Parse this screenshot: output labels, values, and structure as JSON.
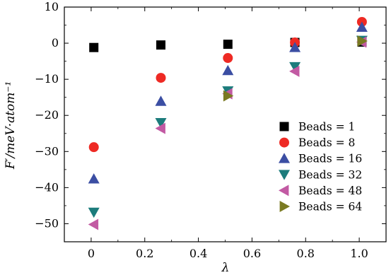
{
  "chart_data": {
    "type": "scatter",
    "title": "",
    "xlabel": "λ",
    "ylabel": "F′/meV·atom⁻¹",
    "xlim": [
      -0.1,
      1.1
    ],
    "ylim": [
      -55,
      10
    ],
    "x_ticks": [
      0,
      0.2,
      0.4,
      0.6,
      0.8,
      1.0
    ],
    "x_tick_labels": [
      "0",
      "0.2",
      "0.4",
      "0.6",
      "0.8",
      "1.0"
    ],
    "y_ticks": [
      10,
      0,
      -10,
      -20,
      -30,
      -40,
      -50
    ],
    "y_tick_labels": [
      "10",
      "0",
      "−10",
      "−20",
      "−30",
      "−40",
      "−50"
    ],
    "grid": false,
    "legend_position": "lower-right",
    "series": [
      {
        "name": "Beads = 1",
        "marker": "square",
        "color": "#000000",
        "x": [
          0.01,
          0.26,
          0.51,
          0.76,
          1.01
        ],
        "y": [
          -1.2,
          -0.5,
          -0.3,
          0.2,
          0.3
        ]
      },
      {
        "name": "Beads = 8",
        "marker": "circle",
        "color": "#ee2a24",
        "x": [
          0.01,
          0.26,
          0.51,
          0.76,
          1.01
        ],
        "y": [
          -28.8,
          -9.6,
          -4.1,
          0.2,
          5.9
        ]
      },
      {
        "name": "Beads = 16",
        "marker": "triangle-up",
        "color": "#3b4ea3",
        "x": [
          0.01,
          0.26,
          0.51,
          0.76,
          1.01
        ],
        "y": [
          -37.6,
          -16.1,
          -7.6,
          -1.2,
          4.4
        ]
      },
      {
        "name": "Beads = 32",
        "marker": "triangle-down",
        "color": "#1c7c7c",
        "x": [
          0.01,
          0.26,
          0.51,
          0.76,
          1.01
        ],
        "y": [
          -46.8,
          -22.0,
          -13.2,
          -6.5,
          0.8
        ]
      },
      {
        "name": "Beads = 48",
        "marker": "triangle-left",
        "color": "#c25aa3",
        "x": [
          0.01,
          0.26,
          0.51,
          0.76,
          1.01
        ],
        "y": [
          -50.2,
          -23.6,
          -14.0,
          -7.8,
          0.3
        ]
      },
      {
        "name": "Beads = 64",
        "marker": "triangle-right",
        "color": "#7a7a22",
        "x": [
          0.51,
          1.01
        ],
        "y": [
          -14.6,
          0.6
        ]
      }
    ]
  }
}
